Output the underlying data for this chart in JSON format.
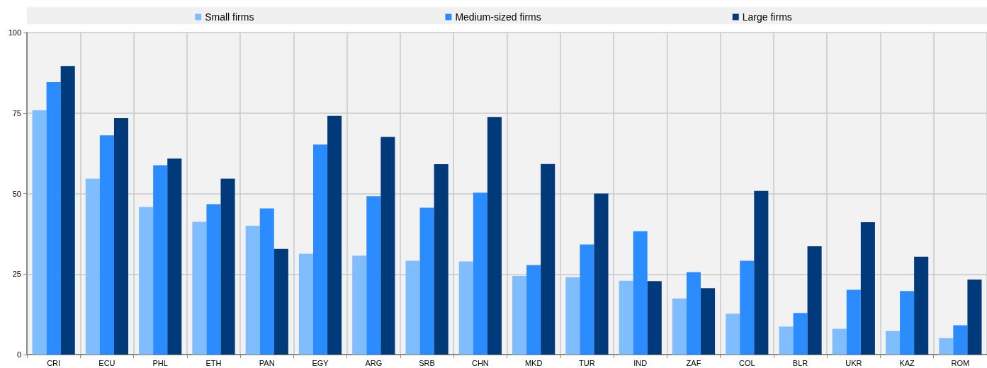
{
  "chart_data": {
    "type": "bar",
    "categories": [
      "CRI",
      "ECU",
      "PHL",
      "ETH",
      "PAN",
      "EGY",
      "ARG",
      "SRB",
      "CHN",
      "MKD",
      "TUR",
      "IND",
      "ZAF",
      "COL",
      "BLR",
      "UKR",
      "KAZ",
      "ROM"
    ],
    "series": [
      {
        "name": "Small firms",
        "color": "#80bdff",
        "values": [
          75.9,
          54.6,
          45.8,
          41.2,
          40.0,
          31.3,
          30.7,
          29.1,
          28.9,
          24.4,
          24.0,
          22.9,
          17.4,
          12.7,
          8.7,
          8.0,
          7.3,
          5.1
        ]
      },
      {
        "name": "Medium-sized firms",
        "color": "#2a8cff",
        "values": [
          84.6,
          68.1,
          58.8,
          46.7,
          45.4,
          65.2,
          49.2,
          45.6,
          50.3,
          27.8,
          34.2,
          38.3,
          25.6,
          29.1,
          12.9,
          20.1,
          19.7,
          9.1
        ]
      },
      {
        "name": "Large firms",
        "color": "#003a7a",
        "values": [
          89.6,
          73.4,
          60.9,
          54.6,
          32.8,
          74.1,
          67.6,
          59.1,
          73.8,
          59.2,
          50.0,
          22.8,
          20.6,
          50.8,
          33.6,
          41.1,
          30.4,
          23.3
        ]
      }
    ],
    "ylim": [
      0,
      100
    ],
    "yticks": [
      0,
      25,
      50,
      75,
      100
    ],
    "grid": true,
    "legend": "top"
  }
}
